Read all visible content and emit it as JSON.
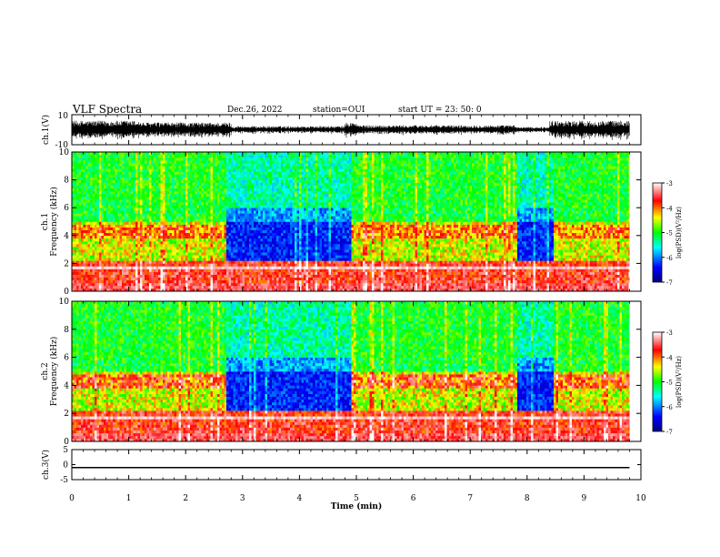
{
  "header": {
    "title": "VLF Spectra",
    "date": "Dec.26, 2022",
    "station": "station=OUI",
    "start_time": "start  UT =   23: 50: 0"
  },
  "chart_data": [
    {
      "type": "line",
      "panel": "ch1-waveform",
      "ylabel": "ch.1(V)",
      "ylim": [
        -10,
        10
      ],
      "yticks": [
        "10",
        "-10"
      ],
      "xlim": [
        0,
        10
      ],
      "segments": [
        {
          "x0": 0.0,
          "x1": 1.2,
          "amplitude": 5
        },
        {
          "x0": 1.2,
          "x1": 2.8,
          "amplitude": 4
        },
        {
          "x0": 2.8,
          "x1": 4.8,
          "amplitude": 2
        },
        {
          "x0": 4.8,
          "x1": 5.0,
          "amplitude": 4
        },
        {
          "x0": 5.0,
          "x1": 7.8,
          "amplitude": 2.5
        },
        {
          "x0": 7.8,
          "x1": 8.4,
          "amplitude": 1.5
        },
        {
          "x0": 8.4,
          "x1": 9.8,
          "amplitude": 5
        }
      ]
    },
    {
      "type": "heatmap",
      "panel": "ch1-spectrogram",
      "ylabel": "ch.1\nFrequency (kHz)",
      "ylim": [
        0,
        10
      ],
      "yticks": [
        "0",
        "2",
        "4",
        "6",
        "8",
        "10"
      ],
      "xlim": [
        0,
        10
      ],
      "data_end_min": 9.8,
      "quiet_intervals_min": [
        [
          2.7,
          4.9
        ],
        [
          7.8,
          8.45
        ]
      ],
      "colorbar": {
        "label": "log(PSD)(V²/Hz)",
        "range": [
          -7,
          -3
        ],
        "ticks": [
          "-3",
          "-4",
          "-5",
          "-6",
          "-7"
        ]
      }
    },
    {
      "type": "heatmap",
      "panel": "ch2-spectrogram",
      "ylabel": "ch.2\nFrequency (kHz)",
      "ylim": [
        0,
        10
      ],
      "yticks": [
        "0",
        "2",
        "4",
        "6",
        "8",
        "10"
      ],
      "xlim": [
        0,
        10
      ],
      "data_end_min": 9.8,
      "quiet_intervals_min": [
        [
          2.7,
          4.9
        ],
        [
          7.8,
          8.45
        ]
      ],
      "colorbar": {
        "label": "log(PSD)(V²/Hz)",
        "range": [
          -7,
          -3
        ],
        "ticks": [
          "-3",
          "-4",
          "-5",
          "-6",
          "-7"
        ]
      }
    },
    {
      "type": "line",
      "panel": "ch3-waveform",
      "ylabel": "ch.3(V)",
      "ylim": [
        -5,
        5
      ],
      "yticks": [
        "5",
        "0",
        "-5"
      ],
      "xlim": [
        0,
        10
      ],
      "x": [
        0,
        9.8
      ],
      "y": [
        -1,
        -1
      ],
      "xlabel": "Time (min)",
      "xticks": [
        "0",
        "1",
        "2",
        "3",
        "4",
        "5",
        "6",
        "7",
        "8",
        "9",
        "10"
      ]
    }
  ]
}
